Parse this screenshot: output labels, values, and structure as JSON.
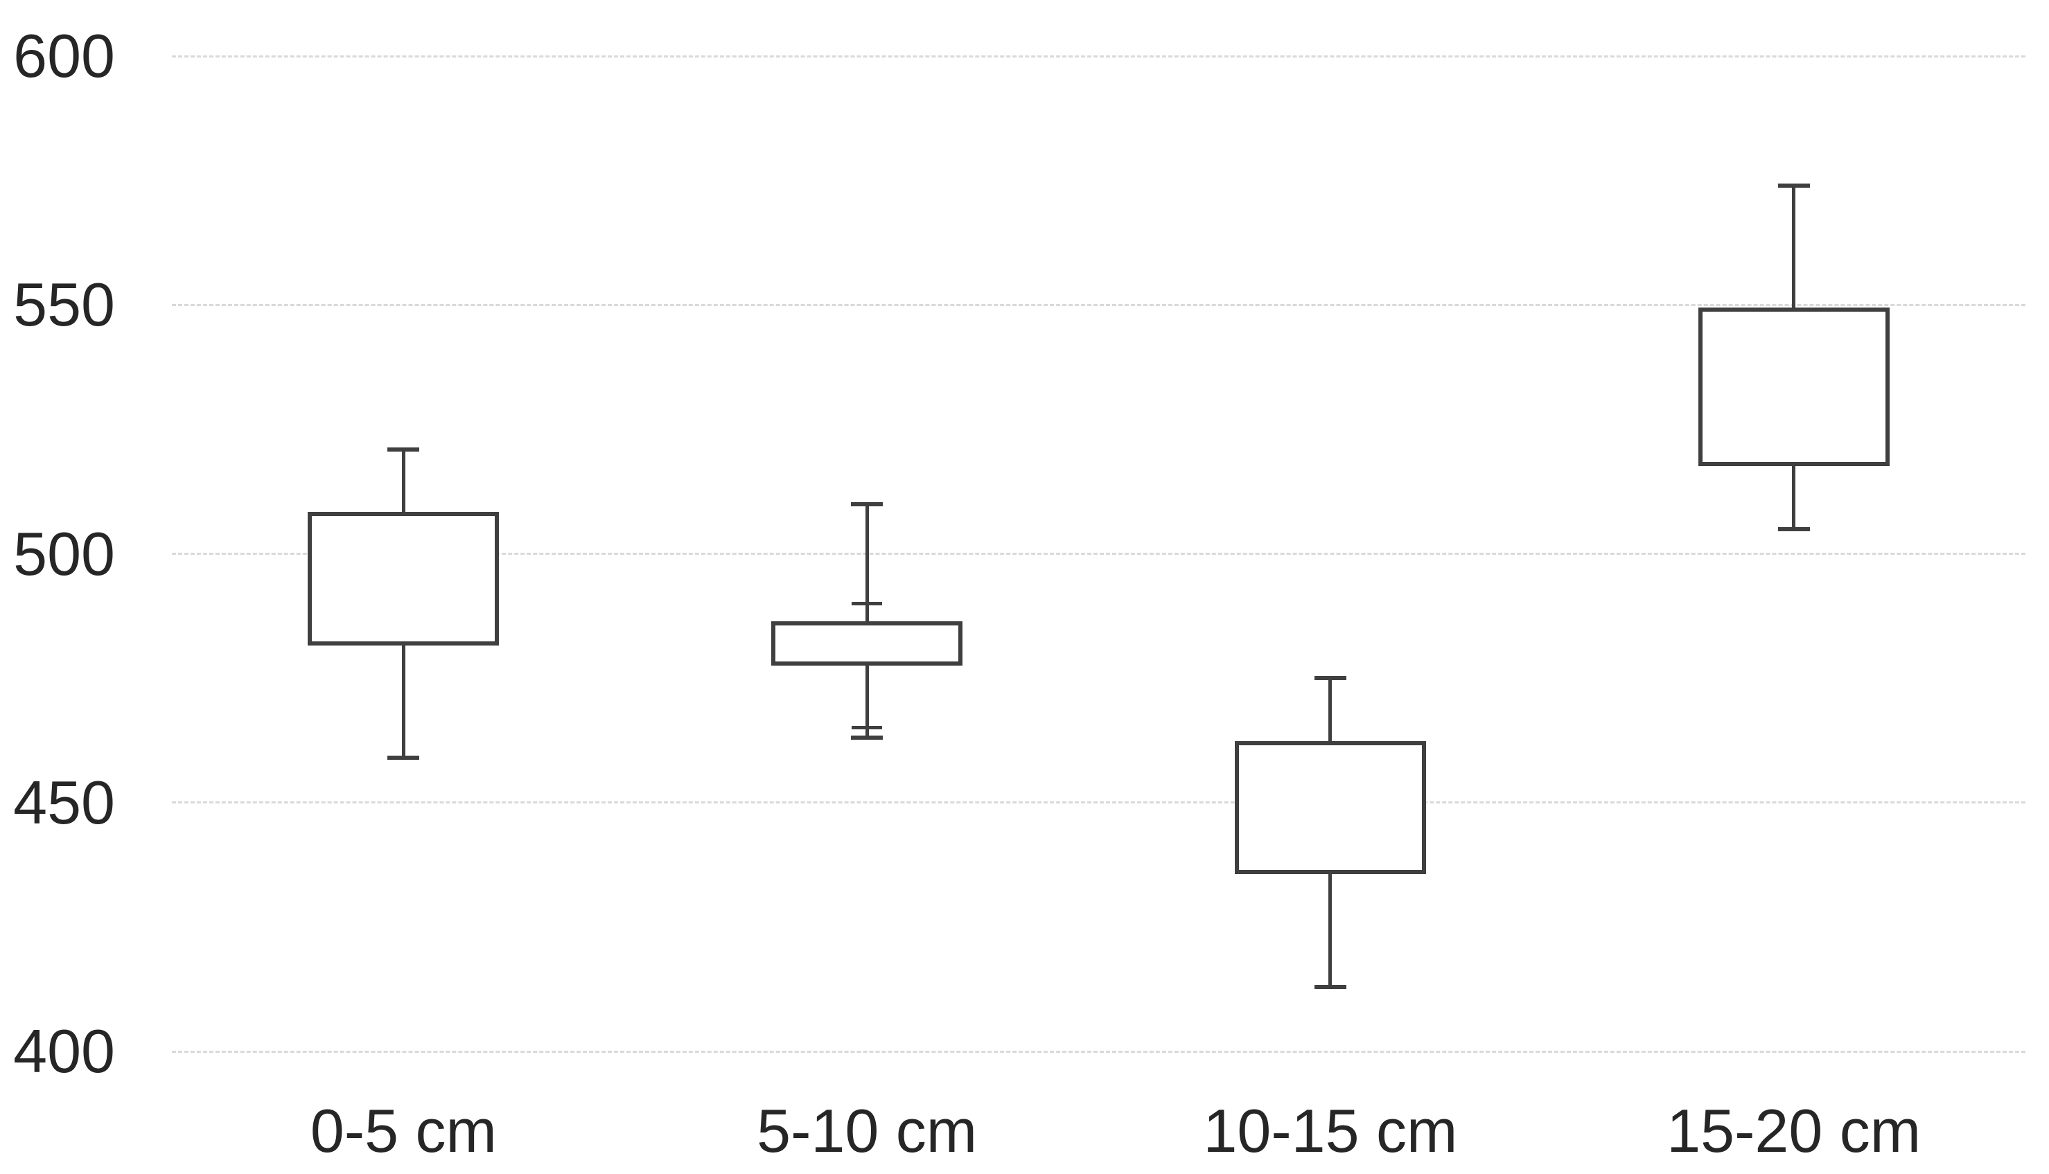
{
  "chart_data": {
    "type": "box",
    "title": "",
    "xlabel": "",
    "ylabel": "",
    "categories": [
      "0-5 cm",
      "5-10 cm",
      "10-15 cm",
      "15-20 cm"
    ],
    "boxes": [
      {
        "category": "0-5 cm",
        "whisker_low": 459,
        "q1": 482,
        "q3": 508,
        "whisker_high": 521,
        "extra_ticks": []
      },
      {
        "category": "5-10 cm",
        "whisker_low": 463,
        "q1": 478,
        "q3": 486,
        "whisker_high": 510,
        "extra_ticks": [
          490,
          465
        ]
      },
      {
        "category": "10-15 cm",
        "whisker_low": 413,
        "q1": 436,
        "q3": 462,
        "whisker_high": 475,
        "extra_ticks": []
      },
      {
        "category": "15-20 cm",
        "whisker_low": 505,
        "q1": 518,
        "q3": 549,
        "whisker_high": 574,
        "extra_ticks": []
      }
    ],
    "median_lines_visible": false,
    "mean_markers_visible": false,
    "ylim": [
      400,
      600
    ],
    "yticks": [
      600,
      550,
      500,
      450,
      400
    ],
    "ytick_labels": [
      "600",
      "550",
      "500",
      "450",
      "400"
    ],
    "grid": "horizontal-dashed",
    "legend": "none",
    "colors": {
      "background": "#ffffff",
      "box_border": "#3f3f3f",
      "whisker": "#3f3f3f",
      "gridline": "#d9d9d9",
      "label_text": "#262626"
    }
  }
}
